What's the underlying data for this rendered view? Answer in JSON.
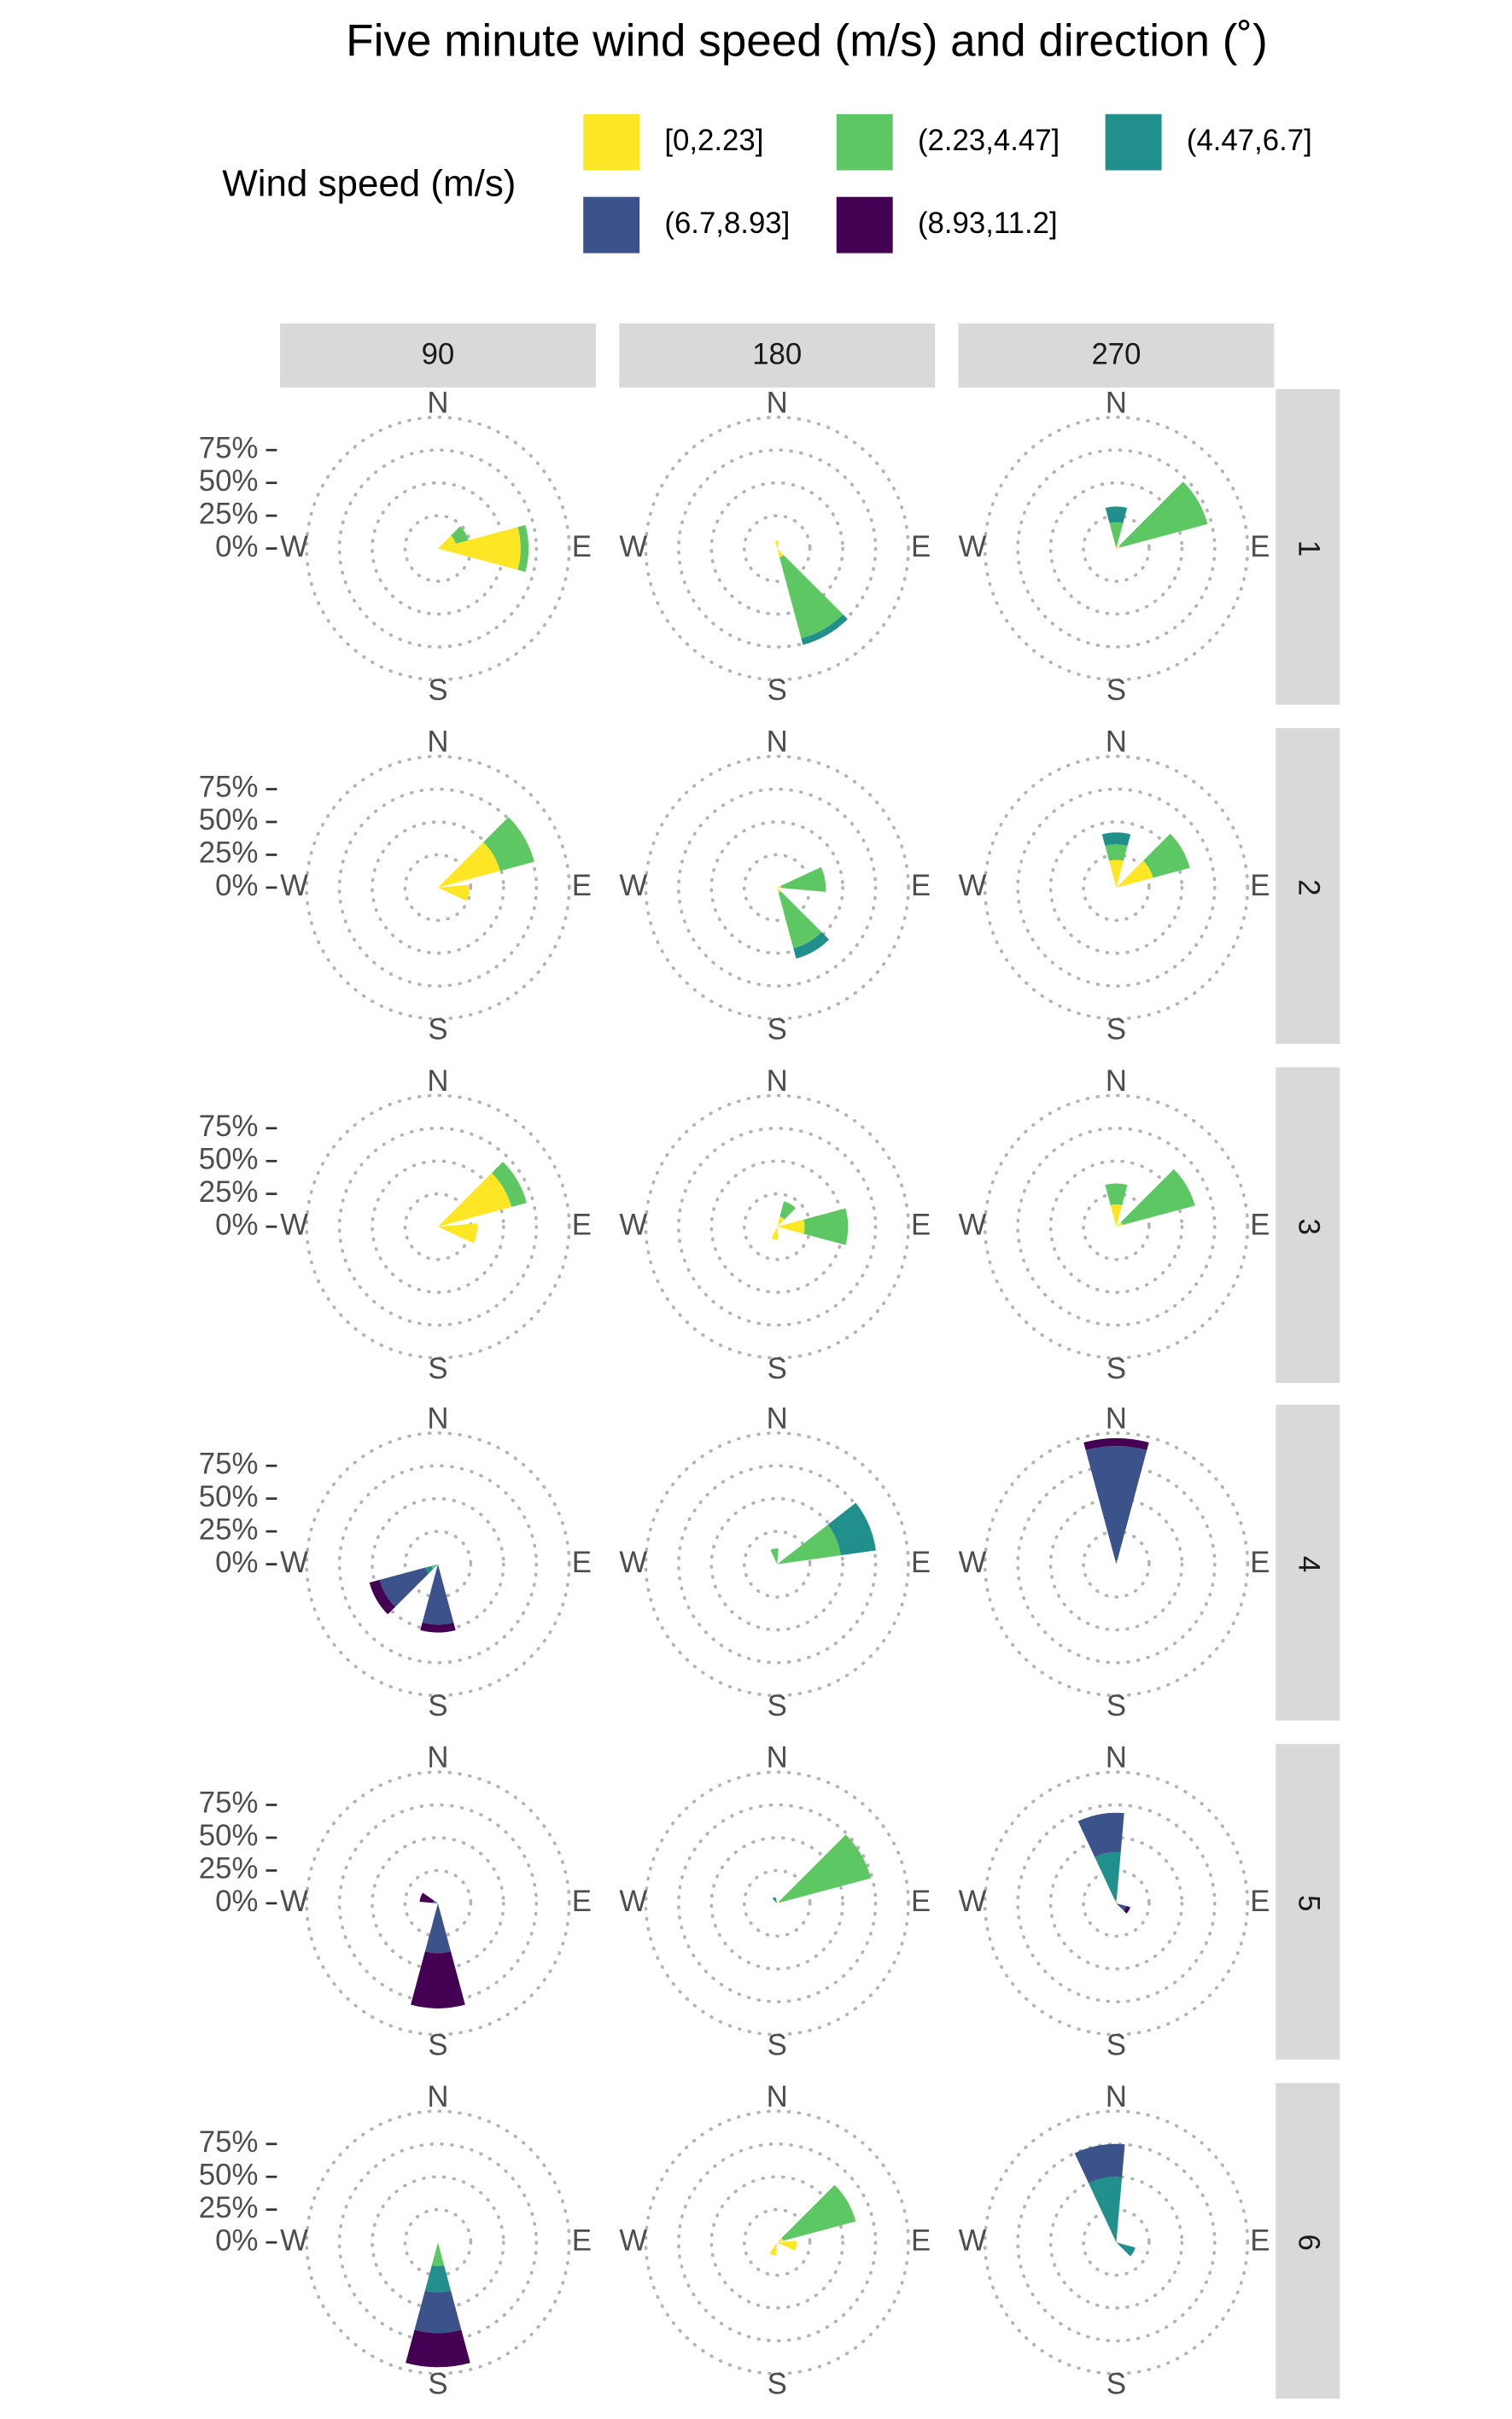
{
  "chart_data": {
    "type": "windrose",
    "title": "Five minute wind speed (m/s) and direction (˚)",
    "legend_title": "Wind speed (m/s)",
    "series": [
      {
        "name": "[0,2.23]",
        "color": "#FDE725"
      },
      {
        "name": "(2.23,4.47]",
        "color": "#5DC863"
      },
      {
        "name": "(4.47,6.7]",
        "color": "#21908C"
      },
      {
        "name": "(6.7,8.93]",
        "color": "#3B528B"
      },
      {
        "name": "(8.93,11.2]",
        "color": "#440154"
      }
    ],
    "columns": [
      90,
      180,
      270
    ],
    "rows": [
      1,
      2,
      3,
      4,
      5,
      6
    ],
    "direction_labels": [
      "N",
      "E",
      "S",
      "W"
    ],
    "rlim": [
      0,
      100
    ],
    "yticks": [
      {
        "value": 0,
        "label": "0%"
      },
      {
        "value": 25,
        "label": "25%"
      },
      {
        "value": 50,
        "label": "50%"
      },
      {
        "value": 75,
        "label": "75%"
      }
    ],
    "grid": true,
    "panels": [
      [
        [
          {
            "direction": 90,
            "values": [
              63,
              6,
              0,
              0,
              0
            ]
          },
          {
            "direction": 60,
            "values": [
              14,
              10,
              0,
              0,
              0
            ]
          }
        ],
        [
          {
            "direction": 150,
            "values": [
              7,
              64,
              5,
              0,
              0
            ]
          },
          {
            "direction": 0,
            "values": [
              6,
              0,
              0,
              0,
              0
            ]
          }
        ],
        [
          {
            "direction": 60,
            "values": [
              3,
              69,
              0,
              0,
              0
            ]
          },
          {
            "direction": 0,
            "values": [
              0,
              20,
              12,
              0,
              0
            ]
          }
        ]
      ],
      [
        [
          {
            "direction": 60,
            "values": [
              49,
              27,
              0,
              0,
              0
            ]
          },
          {
            "direction": 100,
            "values": [
              24,
              0,
              0,
              0,
              0
            ]
          }
        ],
        [
          {
            "direction": 80,
            "values": [
              3,
              34,
              0,
              0,
              0
            ]
          },
          {
            "direction": 150,
            "values": [
              4,
              44,
              8,
              0,
              0
            ]
          }
        ],
        [
          {
            "direction": 0,
            "values": [
              21,
              12,
              9,
              0,
              0
            ]
          },
          {
            "direction": 60,
            "values": [
              29,
              29,
              0,
              0,
              0
            ]
          }
        ]
      ],
      [
        [
          {
            "direction": 60,
            "values": [
              58,
              12,
              0,
              0,
              0
            ]
          },
          {
            "direction": 100,
            "values": [
              30,
              0,
              0,
              0,
              0
            ]
          }
        ],
        [
          {
            "direction": 90,
            "values": [
              21,
              33,
              0,
              0,
              0
            ]
          },
          {
            "direction": 30,
            "values": [
              8,
              12,
              0,
              0,
              0
            ]
          },
          {
            "direction": 190,
            "values": [
              10,
              0,
              0,
              0,
              0
            ]
          }
        ],
        [
          {
            "direction": 60,
            "values": [
              5,
              57,
              0,
              0,
              0
            ]
          },
          {
            "direction": 0,
            "values": [
              17,
              16,
              0,
              0,
              0
            ]
          }
        ]
      ],
      [
        [
          {
            "direction": 240,
            "values": [
              0,
              5,
              5,
              36,
              8
            ]
          },
          {
            "direction": 180,
            "values": [
              0,
              0,
              0,
              46,
              6
            ]
          }
        ],
        [
          {
            "direction": 67,
            "values": [
              0,
              49,
              27,
              0,
              0
            ]
          },
          {
            "direction": 350,
            "values": [
              0,
              12,
              0,
              0,
              0
            ]
          }
        ],
        [
          {
            "direction": 0,
            "values": [
              0,
              0,
              3,
              87,
              6
            ]
          }
        ]
      ],
      [
        [
          {
            "direction": 180,
            "values": [
              0,
              0,
              0,
              38,
              42
            ]
          },
          {
            "direction": 290,
            "values": [
              0,
              0,
              0,
              4,
              10
            ]
          }
        ],
        [
          {
            "direction": 60,
            "values": [
              2,
              72,
              0,
              0,
              0
            ]
          },
          {
            "direction": 330,
            "values": [
              0,
              0,
              5,
              0,
              0
            ]
          }
        ],
        [
          {
            "direction": 350,
            "values": [
              0,
              3,
              36,
              30,
              0
            ]
          },
          {
            "direction": 120,
            "values": [
              0,
              0,
              0,
              8,
              3
            ]
          }
        ]
      ],
      [
        [
          {
            "direction": 180,
            "values": [
              0,
              18,
              20,
              31,
              26
            ]
          }
        ],
        [
          {
            "direction": 60,
            "values": [
              5,
              57,
              0,
              0,
              0
            ]
          },
          {
            "direction": 100,
            "values": [
              15,
              0,
              0,
              0,
              0
            ]
          },
          {
            "direction": 200,
            "values": [
              10,
              0,
              0,
              0,
              0
            ]
          }
        ],
        [
          {
            "direction": 350,
            "values": [
              0,
              0,
              50,
              25,
              0
            ]
          },
          {
            "direction": 120,
            "values": [
              0,
              0,
              15,
              0,
              0
            ]
          }
        ]
      ]
    ]
  }
}
